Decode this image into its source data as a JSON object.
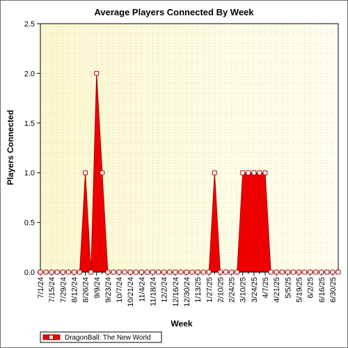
{
  "chart_data": {
    "type": "area",
    "title": "Average Players Connected By Week",
    "xlabel": "Week",
    "ylabel": "Players Connected",
    "ylim": [
      0,
      2.5
    ],
    "yticks": [
      "0.0",
      "0.5",
      "1.0",
      "1.5",
      "2.0",
      "2.5"
    ],
    "x_tick_labels": [
      "7/1/24",
      "7/15/24",
      "7/29/24",
      "8/12/24",
      "8/26/24",
      "9/9/24",
      "9/23/24",
      "10/7/24",
      "10/21/24",
      "11/4/24",
      "11/18/24",
      "12/2/24",
      "12/16/24",
      "12/30/24",
      "1/13/25",
      "1/27/25",
      "2/10/25",
      "2/24/25",
      "3/10/25",
      "3/24/25",
      "4/7/25",
      "4/21/25",
      "5/5/25",
      "5/19/25",
      "6/2/25",
      "6/16/25",
      "6/30/25"
    ],
    "grid": true,
    "legend_position": "bottom-left",
    "colors": {
      "series_fill": "#ee0000",
      "series_stroke": "#aa0000",
      "marker_fill": "#ffffff",
      "plot_bg_left": "#fbf7cf",
      "plot_bg_right": "#fffff0",
      "grid": "#c9c6a6"
    },
    "series": [
      {
        "name": "DragonBall: The New World",
        "x": [
          "7/1/24",
          "7/8/24",
          "7/15/24",
          "7/22/24",
          "7/29/24",
          "8/5/24",
          "8/12/24",
          "8/19/24",
          "8/26/24",
          "9/2/24",
          "9/9/24",
          "9/16/24",
          "9/23/24",
          "9/30/24",
          "10/7/24",
          "10/14/24",
          "10/21/24",
          "10/28/24",
          "11/4/24",
          "11/11/24",
          "11/18/24",
          "11/25/24",
          "12/2/24",
          "12/9/24",
          "12/16/24",
          "12/23/24",
          "12/30/24",
          "1/6/25",
          "1/13/25",
          "1/20/25",
          "1/27/25",
          "2/3/25",
          "2/10/25",
          "2/17/25",
          "2/24/25",
          "3/3/25",
          "3/10/25",
          "3/17/25",
          "3/24/25",
          "3/31/25",
          "4/7/25",
          "4/14/25",
          "4/21/25",
          "4/28/25",
          "5/5/25",
          "5/12/25",
          "5/19/25",
          "5/26/25",
          "6/2/25",
          "6/9/25",
          "6/16/25",
          "6/23/25",
          "6/30/25",
          "7/7/25"
        ],
        "values": [
          0,
          0,
          0,
          0,
          0,
          0,
          0,
          0,
          1,
          0,
          2,
          1,
          0,
          0,
          0,
          0,
          0,
          0,
          0,
          0,
          0,
          0,
          0,
          0,
          0,
          0,
          0,
          0,
          0,
          0,
          0,
          1,
          0,
          0,
          0,
          0,
          1,
          1,
          1,
          1,
          1,
          0,
          0,
          0,
          0,
          0,
          0,
          0,
          0,
          0,
          0,
          0,
          0,
          0
        ]
      }
    ]
  }
}
